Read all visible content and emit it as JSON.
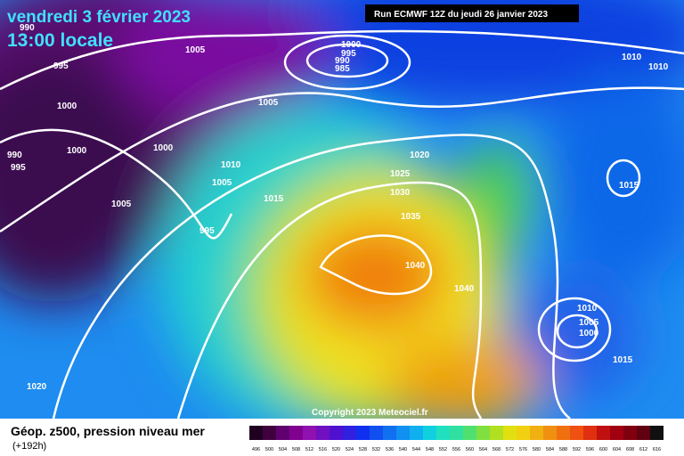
{
  "header": {
    "date": "vendredi 3 février 2023",
    "time": "13:00 locale",
    "run": "Run ECMWF 12Z du jeudi 26 janvier 2023"
  },
  "isobar_labels": [
    990,
    995,
    1005,
    1000,
    995,
    990,
    985,
    1000,
    1005,
    1000,
    1000,
    990,
    995,
    1010,
    1005,
    1020,
    1025,
    1030,
    1015,
    1005,
    1035,
    995,
    1040,
    1040,
    1010,
    1010,
    1015,
    1010,
    1005,
    1000,
    1015,
    1020
  ],
  "copyright": "Copyright 2023 Meteociel.fr",
  "footer": {
    "title": "Géop. z500, pression niveau mer",
    "lead": "(+192h)"
  },
  "legend": {
    "labels": [
      496,
      500,
      504,
      508,
      512,
      516,
      520,
      524,
      528,
      532,
      536,
      540,
      544,
      548,
      552,
      556,
      560,
      564,
      568,
      572,
      576,
      580,
      584,
      588,
      592,
      596,
      600,
      604,
      608,
      612,
      616
    ]
  }
}
